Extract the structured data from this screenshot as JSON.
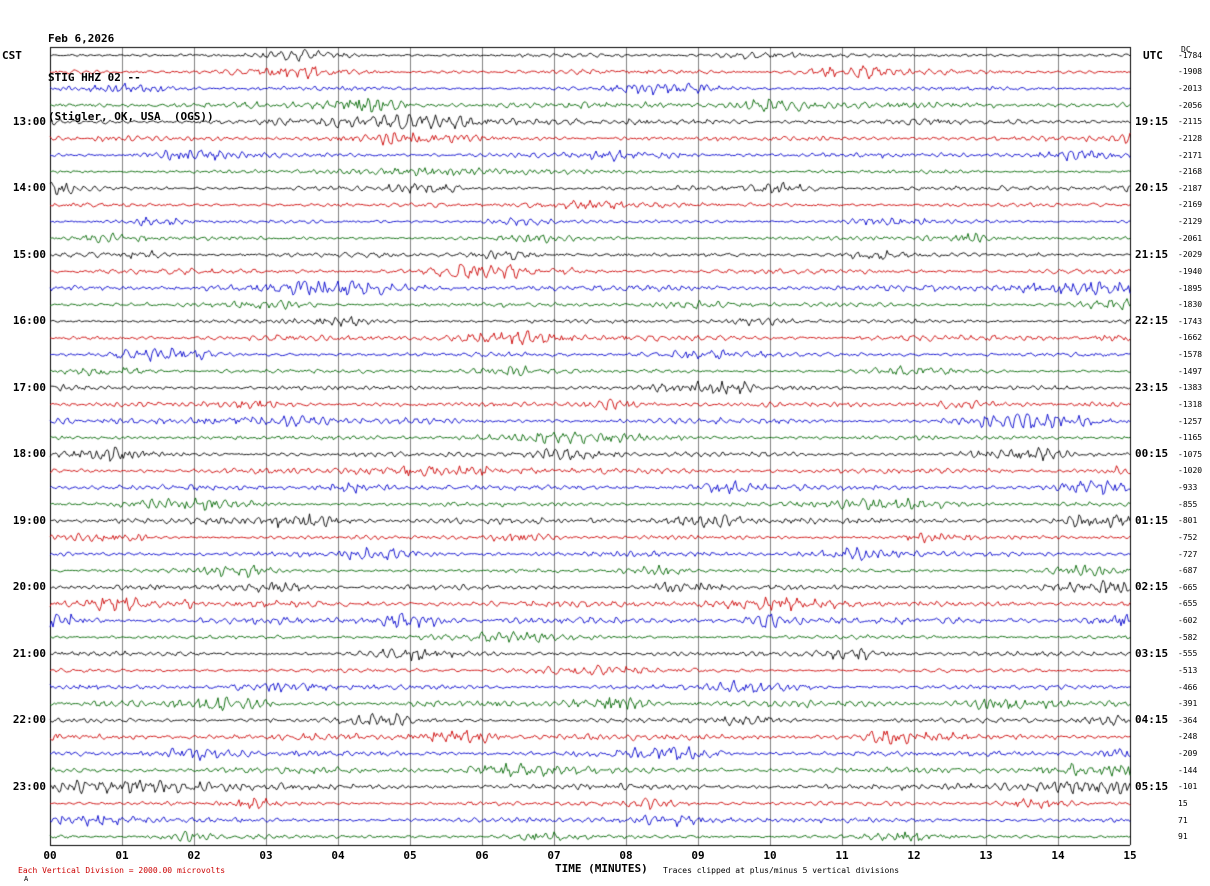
{
  "header": {
    "date": "Feb 6,2026",
    "station_line": "STIG HHZ 02 --",
    "location_line": "(Stigler, OK, USA  (OGS))",
    "left_timezone": "CST",
    "right_timezone": "UTC",
    "dc_label": "DC"
  },
  "chart_data": {
    "type": "line",
    "subtype": "helicorder-seismogram",
    "title": "STIG HHZ 02 -- (Stigler, OK, USA (OGS)) Feb 6,2026",
    "xlabel": "TIME (MINUTES)",
    "x_range_minutes": [
      0,
      15
    ],
    "minutes_per_row": 15,
    "rows": 48,
    "trace_colors": [
      "#000000",
      "#cc0000",
      "#0000cc",
      "#006600"
    ],
    "grid_color": "#808080",
    "border_color": "#000000",
    "x_tick_labels": [
      "00",
      "01",
      "02",
      "03",
      "04",
      "05",
      "06",
      "07",
      "08",
      "09",
      "10",
      "11",
      "12",
      "13",
      "14",
      "15"
    ],
    "left_time_labels": [
      {
        "row": 4,
        "text": "13:00"
      },
      {
        "row": 8,
        "text": "14:00"
      },
      {
        "row": 12,
        "text": "15:00"
      },
      {
        "row": 16,
        "text": "16:00"
      },
      {
        "row": 20,
        "text": "17:00"
      },
      {
        "row": 24,
        "text": "18:00"
      },
      {
        "row": 28,
        "text": "19:00"
      },
      {
        "row": 32,
        "text": "20:00"
      },
      {
        "row": 36,
        "text": "21:00"
      },
      {
        "row": 40,
        "text": "22:00"
      },
      {
        "row": 44,
        "text": "23:00"
      }
    ],
    "right_time_labels": [
      {
        "row": 4,
        "text": "19:15"
      },
      {
        "row": 8,
        "text": "20:15"
      },
      {
        "row": 12,
        "text": "21:15"
      },
      {
        "row": 16,
        "text": "22:15"
      },
      {
        "row": 20,
        "text": "23:15"
      },
      {
        "row": 24,
        "text": "00:15"
      },
      {
        "row": 28,
        "text": "01:15"
      },
      {
        "row": 32,
        "text": "02:15"
      },
      {
        "row": 36,
        "text": "03:15"
      },
      {
        "row": 40,
        "text": "04:15"
      },
      {
        "row": 44,
        "text": "05:15"
      }
    ],
    "dc_offsets": [
      -1784,
      -1908,
      -2013,
      -2056,
      -2115,
      -2128,
      -2171,
      -2168,
      -2187,
      -2169,
      -2129,
      -2061,
      -2029,
      -1940,
      -1895,
      -1830,
      -1743,
      -1662,
      -1578,
      -1497,
      -1383,
      -1318,
      -1257,
      -1165,
      -1075,
      -1020,
      -933,
      -855,
      -801,
      -752,
      -727,
      -687,
      -665,
      -655,
      -602,
      -582,
      -555,
      -513,
      -466,
      -391,
      -364,
      -248,
      -209,
      -144,
      -101,
      15,
      71,
      91
    ]
  },
  "footer": {
    "scale_note": "Each Vertical Division = 2000.00 microvolts",
    "scale_note_color": "#cc0000",
    "clip_note": "Traces clipped at plus/minus 5 vertical divisions",
    "corner_mark": "A"
  }
}
